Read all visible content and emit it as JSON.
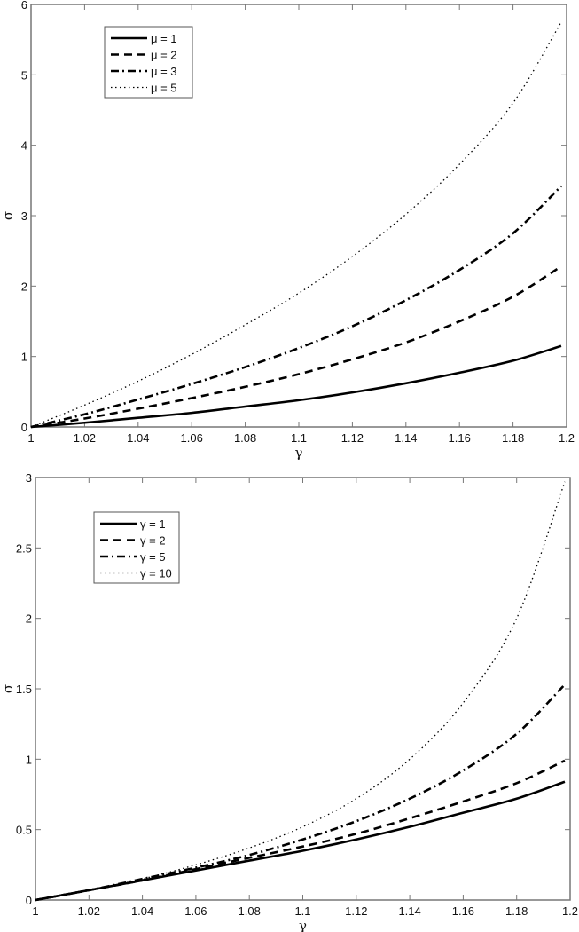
{
  "chart_data": [
    {
      "type": "line",
      "title": "",
      "xlabel": "γ",
      "ylabel": "σ",
      "xlim": [
        1,
        1.2
      ],
      "ylim": [
        0,
        6
      ],
      "grid": false,
      "legend_position": "upper-left",
      "x_ticks": [
        "1",
        "1.02",
        "1.04",
        "1.06",
        "1.08",
        "1.1",
        "1.12",
        "1.14",
        "1.16",
        "1.18",
        "1.2"
      ],
      "y_ticks": [
        "0",
        "1",
        "2",
        "3",
        "4",
        "5",
        "6"
      ],
      "x": [
        1.0,
        1.02,
        1.04,
        1.06,
        1.08,
        1.1,
        1.12,
        1.14,
        1.16,
        1.18,
        1.198
      ],
      "series": [
        {
          "name": "μ = 1",
          "style": "solid",
          "values": [
            0,
            0.06,
            0.13,
            0.2,
            0.29,
            0.38,
            0.49,
            0.62,
            0.77,
            0.94,
            1.15
          ]
        },
        {
          "name": "μ = 2",
          "style": "dashed",
          "values": [
            0,
            0.12,
            0.26,
            0.41,
            0.57,
            0.75,
            0.96,
            1.2,
            1.5,
            1.85,
            2.28
          ]
        },
        {
          "name": "μ = 3",
          "style": "dashdot",
          "values": [
            0,
            0.18,
            0.39,
            0.61,
            0.85,
            1.12,
            1.43,
            1.8,
            2.23,
            2.75,
            3.42
          ]
        },
        {
          "name": "μ = 5",
          "style": "dotted",
          "values": [
            0,
            0.31,
            0.65,
            1.03,
            1.45,
            1.9,
            2.42,
            3.02,
            3.73,
            4.6,
            5.75
          ]
        }
      ]
    },
    {
      "type": "line",
      "title": "",
      "xlabel": "γ",
      "ylabel": "σ",
      "xlim": [
        1,
        1.2
      ],
      "ylim": [
        0,
        3
      ],
      "grid": false,
      "legend_position": "upper-left",
      "x_ticks": [
        "1",
        "1.02",
        "1.04",
        "1.06",
        "1.08",
        "1.1",
        "1.12",
        "1.14",
        "1.16",
        "1.18",
        "1.2"
      ],
      "y_ticks": [
        "0",
        "0.5",
        "1",
        "1.5",
        "2",
        "2.5",
        "3"
      ],
      "x": [
        1.0,
        1.02,
        1.04,
        1.06,
        1.08,
        1.1,
        1.12,
        1.14,
        1.16,
        1.18,
        1.198
      ],
      "series": [
        {
          "name": "γ = 1",
          "style": "solid",
          "values": [
            0,
            0.07,
            0.14,
            0.21,
            0.28,
            0.35,
            0.43,
            0.52,
            0.62,
            0.72,
            0.84
          ]
        },
        {
          "name": "γ = 2",
          "style": "dashed",
          "values": [
            0,
            0.07,
            0.14,
            0.22,
            0.3,
            0.38,
            0.47,
            0.58,
            0.7,
            0.83,
            0.99
          ]
        },
        {
          "name": "γ = 5",
          "style": "dashdot",
          "values": [
            0,
            0.07,
            0.15,
            0.23,
            0.32,
            0.43,
            0.56,
            0.72,
            0.92,
            1.18,
            1.53
          ]
        },
        {
          "name": "γ = 10",
          "style": "dotted",
          "values": [
            0,
            0.07,
            0.15,
            0.25,
            0.37,
            0.52,
            0.72,
            1.0,
            1.4,
            2.0,
            2.97
          ]
        }
      ]
    }
  ]
}
